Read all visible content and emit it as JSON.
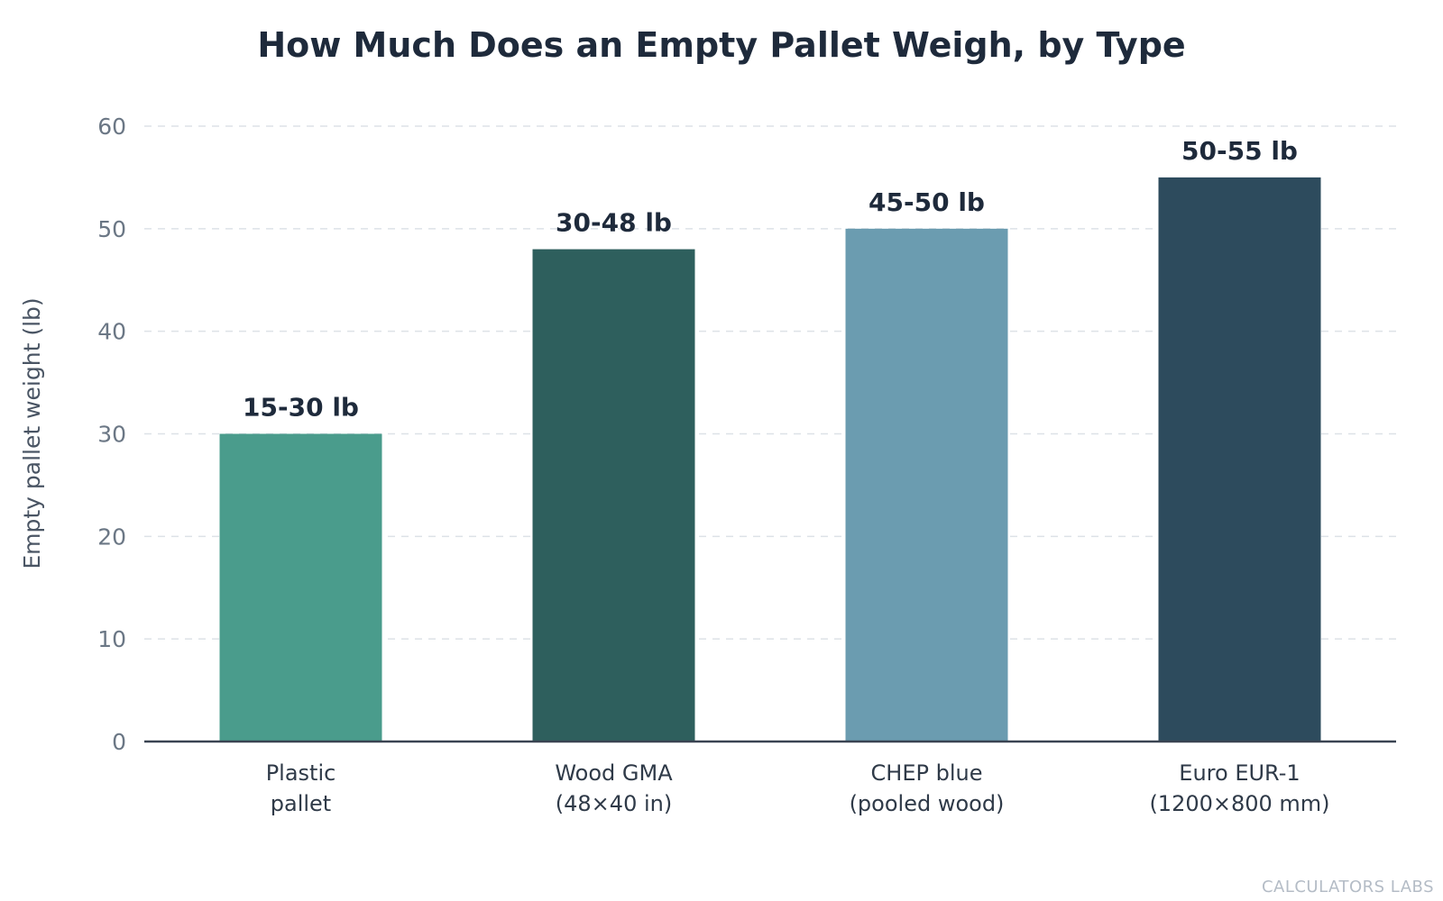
{
  "title": "How Much Does an Empty Pallet Weigh, by Type",
  "watermark": "CALCULATORS LABS",
  "colors": {
    "text_dark": "#1e2a3b",
    "tick_text": "#6b7785",
    "grid": "#dde2e7",
    "axis": "#3a4452"
  },
  "chart_data": {
    "type": "bar",
    "title": "How Much Does an Empty Pallet Weigh, by Type",
    "ylabel": "Empty pallet weight (lb)",
    "xlabel": "",
    "ylim": [
      0,
      60
    ],
    "yticks": [
      0,
      10,
      20,
      30,
      40,
      50,
      60
    ],
    "grid": true,
    "categories": [
      [
        "Plastic",
        "pallet"
      ],
      [
        "Wood GMA",
        "(48×40 in)"
      ],
      [
        "CHEP blue",
        "(pooled wood)"
      ],
      [
        "Euro EUR-1",
        "(1200×800 mm)"
      ]
    ],
    "values": [
      30,
      48,
      50,
      55
    ],
    "data_labels": [
      "15-30 lb",
      "30-48 lb",
      "45-50 lb",
      "50-55 lb"
    ],
    "bar_colors": [
      "#4a9c8c",
      "#2e5f5d",
      "#6b9cb0",
      "#2d4b5d"
    ]
  }
}
